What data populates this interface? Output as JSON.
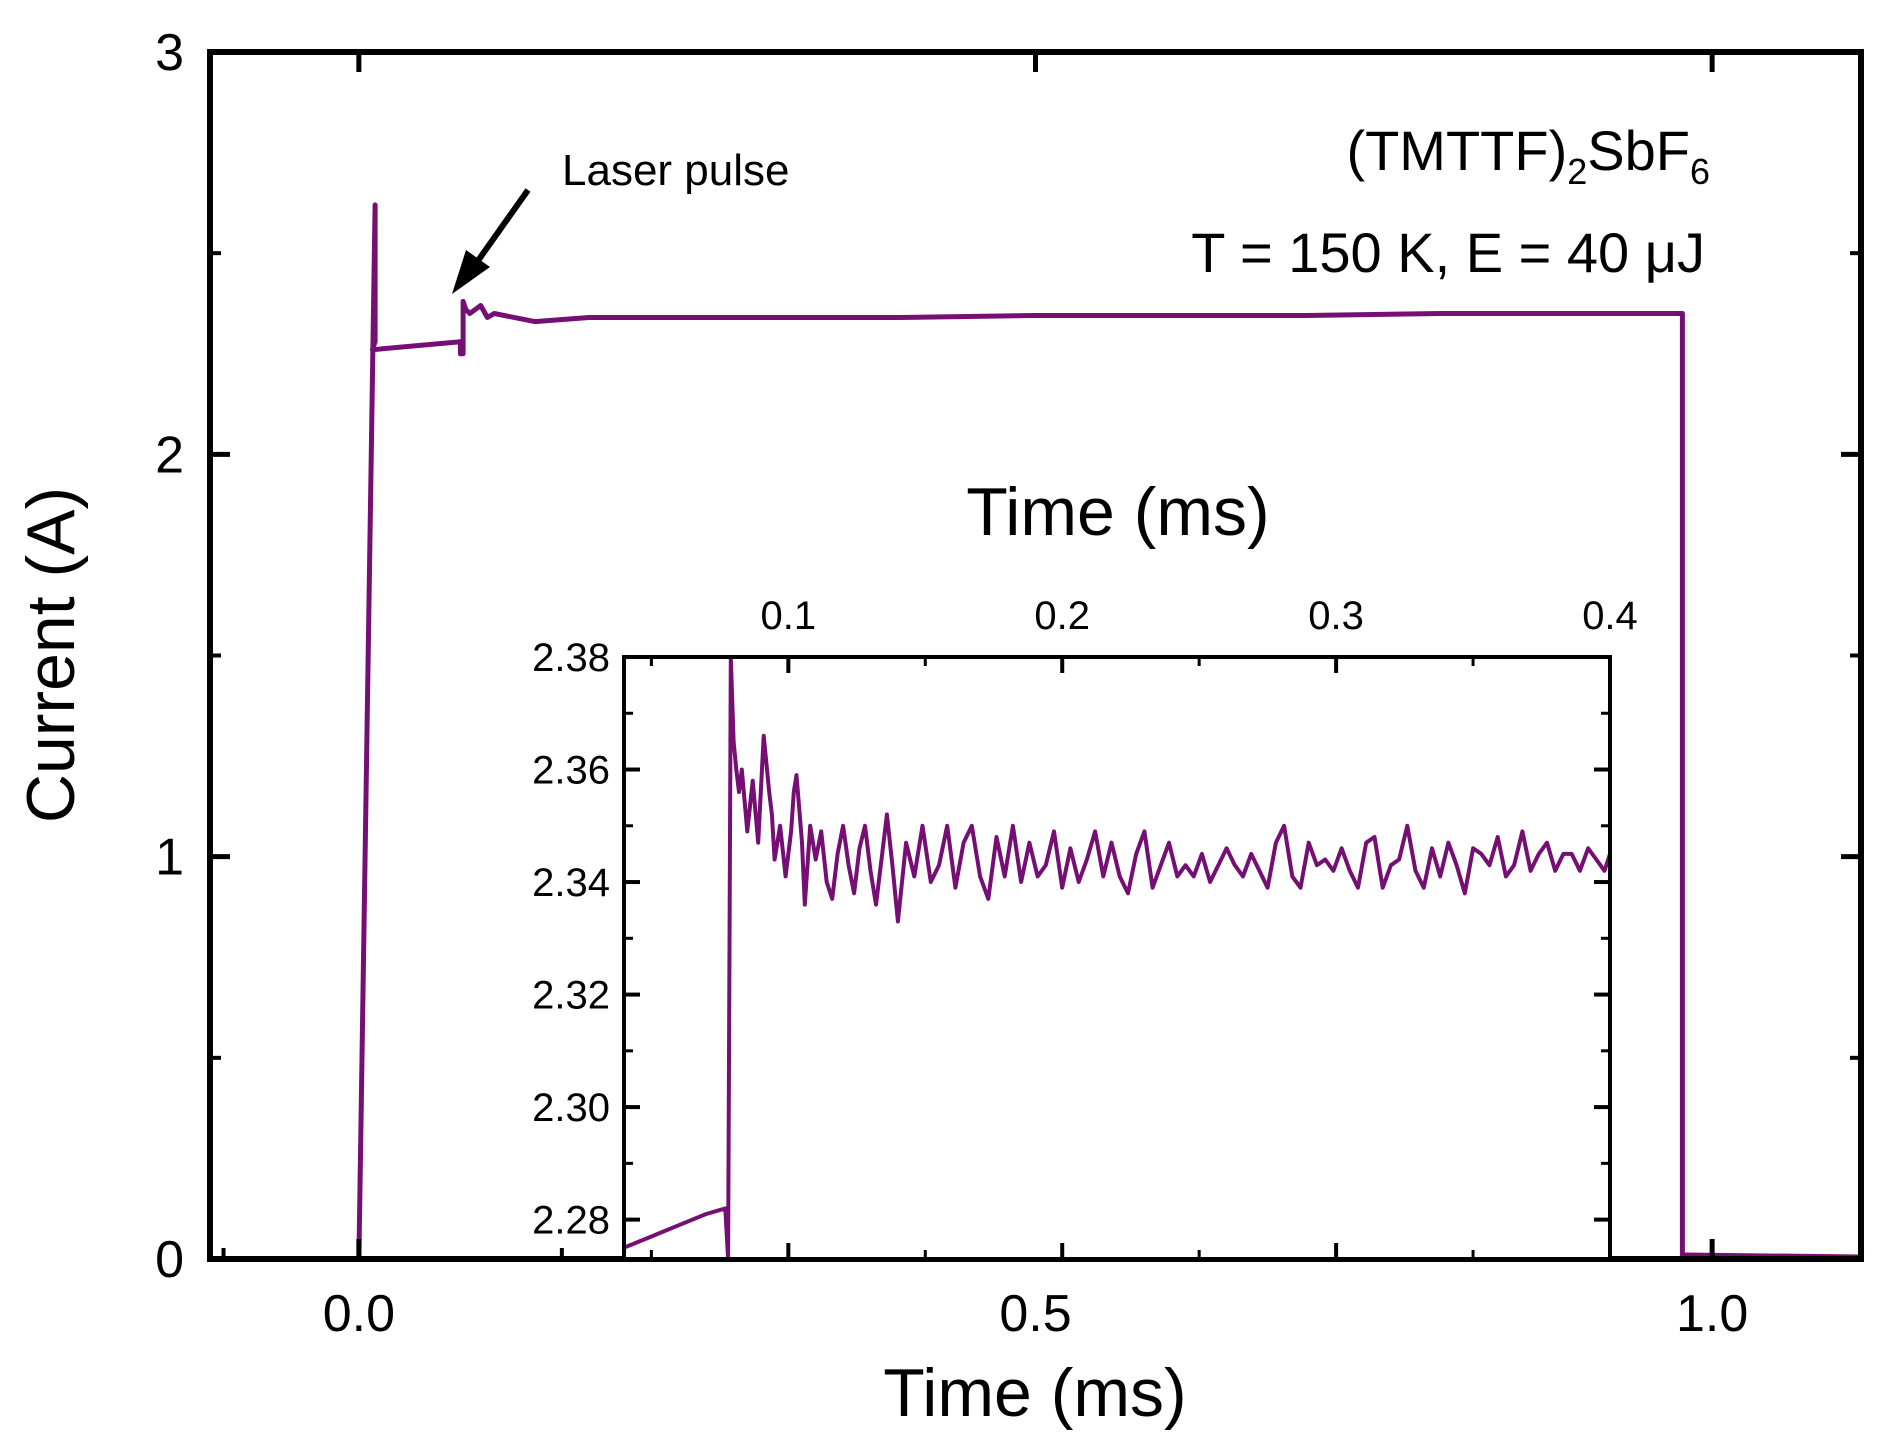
{
  "chart_data": [
    {
      "type": "line",
      "id": "main",
      "xlabel": "Time (ms)",
      "ylabel": "Current (A)",
      "xlim": [
        -0.11,
        1.11
      ],
      "ylim": [
        0,
        3
      ],
      "xticks": [
        0.0,
        0.5,
        1.0
      ],
      "xtick_labels": [
        "0.0",
        "0.5",
        "1.0"
      ],
      "yticks": [
        0,
        1,
        2,
        3
      ],
      "ytick_labels": [
        "0",
        "1",
        "2",
        "3"
      ],
      "line_color": "#750f73",
      "annotations": {
        "compound_prefix": "(TMTTF)",
        "compound_sub1": "2",
        "compound_mid": "SbF",
        "compound_sub2": "6",
        "conditions": "T = 150 K, E = 40 μJ",
        "laser_label": "Laser pulse"
      },
      "series": [
        {
          "name": "current",
          "x": [
            -0.11,
            0.0,
            0.0,
            0.012,
            0.012,
            0.01,
            0.075,
            0.075,
            0.077,
            0.077,
            0.079,
            0.082,
            0.09,
            0.095,
            0.1,
            0.13,
            0.17,
            0.2,
            0.3,
            0.4,
            0.5,
            0.6,
            0.7,
            0.8,
            0.9,
            0.978,
            0.978,
            0.98,
            1.11
          ],
          "y": [
            0,
            0,
            0,
            2.62,
            2.28,
            2.26,
            2.28,
            2.25,
            2.25,
            2.38,
            2.36,
            2.35,
            2.37,
            2.34,
            2.35,
            2.33,
            2.34,
            2.34,
            2.34,
            2.34,
            2.345,
            2.345,
            2.345,
            2.35,
            2.35,
            2.35,
            0.01,
            0.01,
            0.005
          ]
        }
      ]
    },
    {
      "type": "line",
      "id": "inset",
      "xlabel": "Time (ms)",
      "ylabel": "",
      "xlim": [
        0.04,
        0.4
      ],
      "ylim": [
        2.273,
        2.38
      ],
      "xticks": [
        0.1,
        0.2,
        0.3,
        0.4
      ],
      "xtick_labels": [
        "0.1",
        "0.2",
        "0.3",
        "0.4"
      ],
      "yticks": [
        2.28,
        2.3,
        2.32,
        2.34,
        2.36,
        2.38
      ],
      "ytick_labels": [
        "2.28",
        "2.30",
        "2.32",
        "2.34",
        "2.36",
        "2.38"
      ],
      "line_color": "#750f73",
      "series": [
        {
          "name": "current-zoom",
          "x": [
            0.04,
            0.05,
            0.06,
            0.07,
            0.077,
            0.078,
            0.079,
            0.08,
            0.081,
            0.082,
            0.083,
            0.085,
            0.087,
            0.089,
            0.091,
            0.093,
            0.094,
            0.095,
            0.097,
            0.099,
            0.101,
            0.102,
            0.103,
            0.105,
            0.106,
            0.108,
            0.11,
            0.112,
            0.114,
            0.116,
            0.118,
            0.12,
            0.122,
            0.124,
            0.126,
            0.128,
            0.13,
            0.132,
            0.134,
            0.136,
            0.138,
            0.14,
            0.143,
            0.146,
            0.149,
            0.152,
            0.155,
            0.158,
            0.161,
            0.164,
            0.167,
            0.17,
            0.173,
            0.176,
            0.179,
            0.182,
            0.185,
            0.188,
            0.191,
            0.194,
            0.197,
            0.2,
            0.203,
            0.206,
            0.209,
            0.212,
            0.215,
            0.218,
            0.221,
            0.224,
            0.227,
            0.23,
            0.233,
            0.236,
            0.239,
            0.242,
            0.245,
            0.248,
            0.251,
            0.254,
            0.257,
            0.26,
            0.263,
            0.266,
            0.269,
            0.272,
            0.275,
            0.278,
            0.281,
            0.284,
            0.287,
            0.29,
            0.293,
            0.296,
            0.299,
            0.302,
            0.305,
            0.308,
            0.311,
            0.314,
            0.317,
            0.32,
            0.323,
            0.326,
            0.329,
            0.332,
            0.335,
            0.338,
            0.341,
            0.344,
            0.347,
            0.35,
            0.353,
            0.356,
            0.359,
            0.362,
            0.365,
            0.368,
            0.371,
            0.374,
            0.377,
            0.38,
            0.383,
            0.386,
            0.389,
            0.392,
            0.395,
            0.398,
            0.4
          ],
          "y": [
            2.275,
            2.277,
            2.279,
            2.281,
            2.282,
            2.273,
            2.38,
            2.365,
            2.36,
            2.356,
            2.36,
            2.349,
            2.358,
            2.347,
            2.366,
            2.356,
            2.352,
            2.344,
            2.35,
            2.341,
            2.349,
            2.356,
            2.359,
            2.347,
            2.336,
            2.35,
            2.344,
            2.349,
            2.34,
            2.337,
            2.345,
            2.35,
            2.343,
            2.338,
            2.346,
            2.35,
            2.342,
            2.336,
            2.344,
            2.352,
            2.343,
            2.333,
            2.347,
            2.341,
            2.35,
            2.34,
            2.343,
            2.35,
            2.339,
            2.347,
            2.35,
            2.341,
            2.337,
            2.348,
            2.341,
            2.35,
            2.34,
            2.347,
            2.341,
            2.343,
            2.349,
            2.339,
            2.346,
            2.34,
            2.344,
            2.349,
            2.341,
            2.347,
            2.341,
            2.338,
            2.345,
            2.349,
            2.339,
            2.343,
            2.347,
            2.341,
            2.343,
            2.341,
            2.345,
            2.34,
            2.343,
            2.346,
            2.343,
            2.341,
            2.345,
            2.342,
            2.339,
            2.347,
            2.35,
            2.341,
            2.339,
            2.347,
            2.343,
            2.344,
            2.342,
            2.346,
            2.342,
            2.339,
            2.347,
            2.348,
            2.339,
            2.343,
            2.344,
            2.35,
            2.342,
            2.339,
            2.346,
            2.341,
            2.347,
            2.343,
            2.338,
            2.346,
            2.345,
            2.343,
            2.348,
            2.341,
            2.343,
            2.349,
            2.342,
            2.345,
            2.347,
            2.342,
            2.345,
            2.345,
            2.342,
            2.346,
            2.344,
            2.342,
            2.345
          ]
        }
      ]
    }
  ]
}
